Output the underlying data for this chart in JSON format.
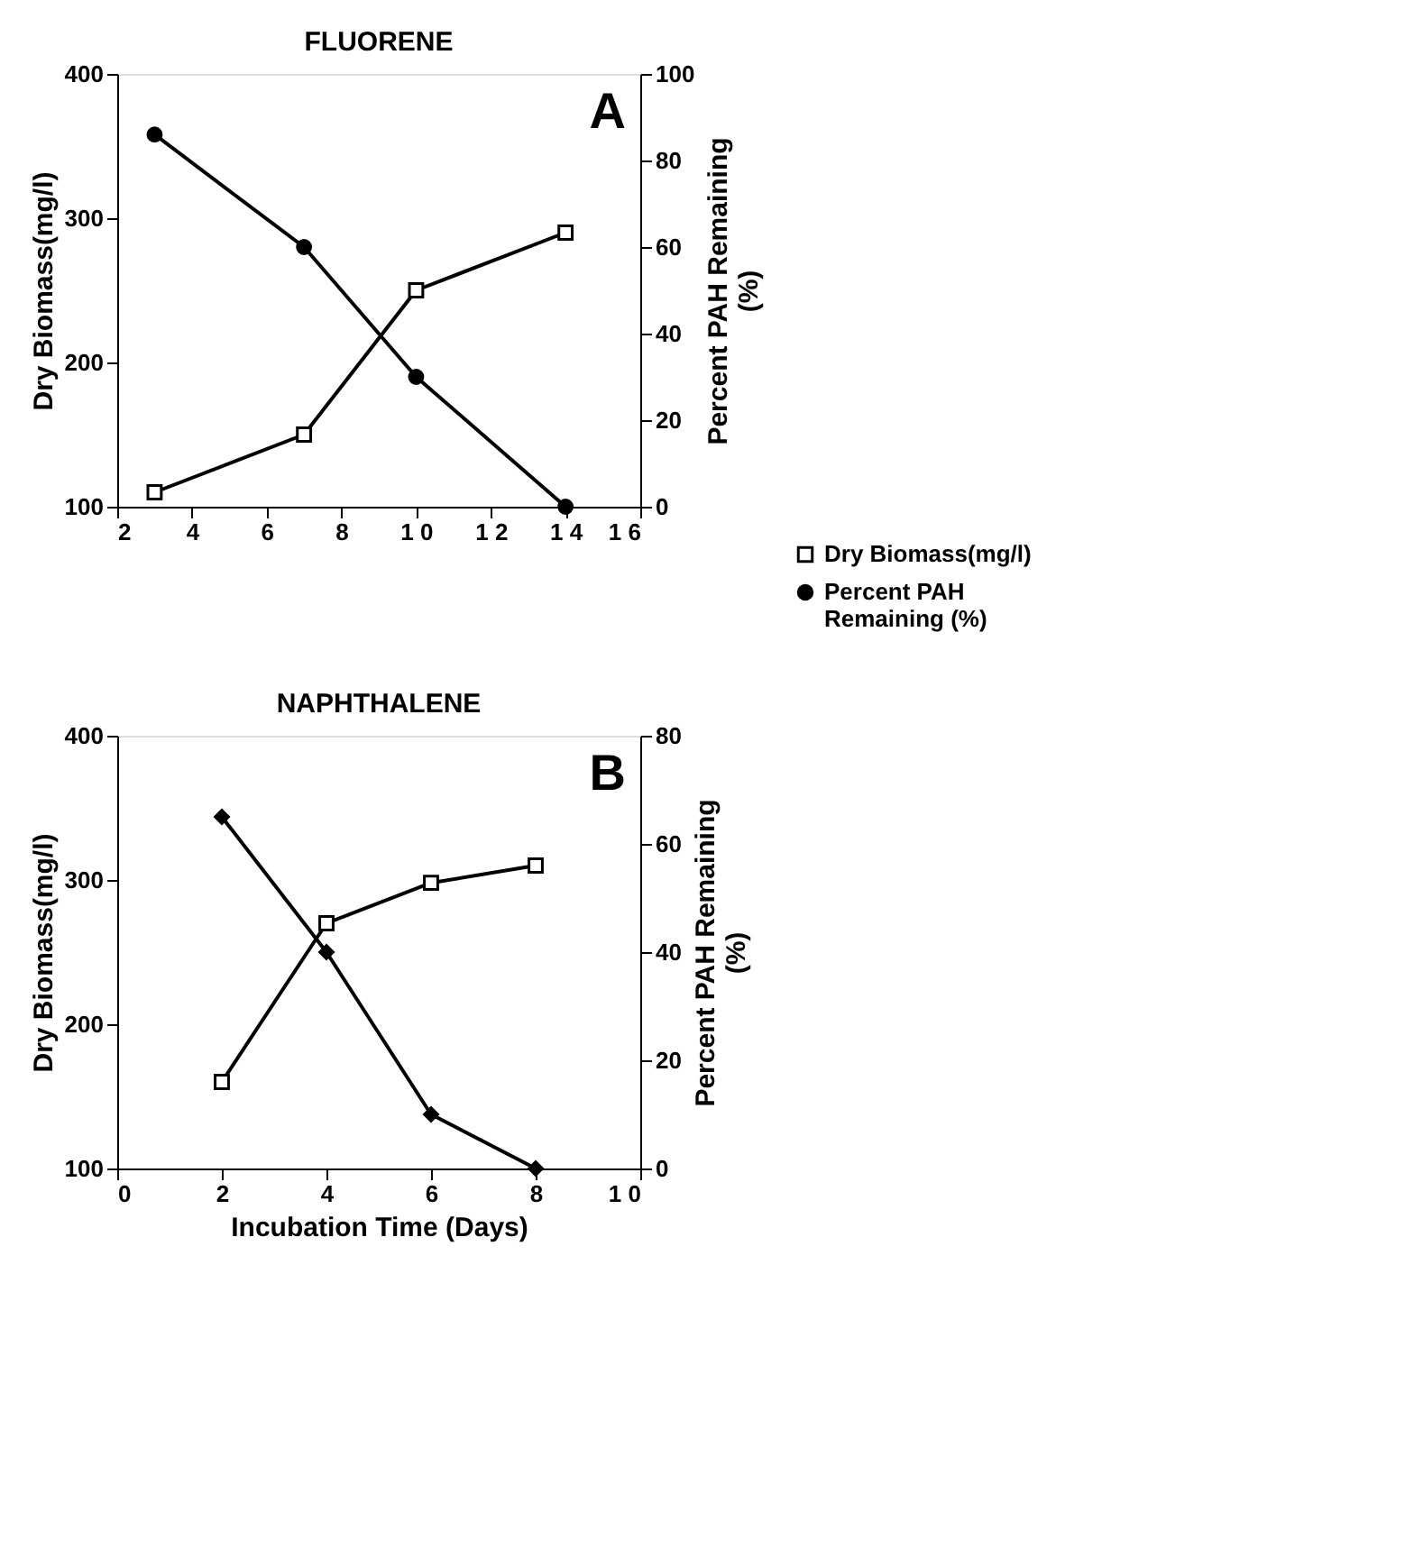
{
  "chart_data": [
    {
      "type": "line",
      "title": "FLUORENE",
      "ylabel": "Dry Biomass(mg/l)",
      "y2label": "Percent PAH Remaining\n(%)",
      "annotations": [
        "A"
      ],
      "x": [
        3,
        7,
        10,
        14
      ],
      "xlim": [
        2,
        16
      ],
      "xticks": [
        2,
        4,
        6,
        8,
        {
          "value": 10,
          "label": "1 0"
        },
        {
          "value": 12,
          "label": "1 2"
        },
        {
          "value": 14,
          "label": "1 4"
        },
        {
          "value": 16,
          "label": "1 6"
        }
      ],
      "ylim": [
        100,
        400
      ],
      "yticks": [
        100,
        200,
        300,
        400
      ],
      "y2lim": [
        0,
        100
      ],
      "y2ticks": [
        0,
        20,
        40,
        60,
        80,
        100
      ],
      "grid": false,
      "legend": "bottom right",
      "line_style": "solid",
      "series": [
        {
          "name": "Dry Biomass(mg/l)",
          "color": "#000000",
          "marker": "square",
          "values": [
            110,
            150,
            250,
            290
          ]
        },
        {
          "name": "Percent PAH\n Remaining (%)",
          "color": "#000000",
          "marker": "circle",
          "axis": "y2",
          "values": [
            86,
            60,
            30,
            0
          ]
        }
      ]
    },
    {
      "type": "line",
      "title": "NAPHTHALENE",
      "xlabel": "Incubation Time (Days)",
      "ylabel": "Dry Biomass(mg/l)",
      "y2label": "Percent PAH Remaining\n(%)",
      "annotations": [
        "B"
      ],
      "x": [
        2,
        4,
        6,
        8
      ],
      "xlim": [
        0,
        10
      ],
      "xticks": [
        0,
        2,
        4,
        6,
        8,
        {
          "value": 10,
          "label": "1 0"
        }
      ],
      "ylim": [
        100,
        400
      ],
      "yticks": [
        100,
        200,
        300,
        400
      ],
      "y2lim": [
        0,
        80
      ],
      "y2ticks": [
        0,
        20,
        40,
        60,
        80
      ],
      "grid": false,
      "line_style": "solid",
      "series": [
        {
          "color": "#000000",
          "marker": "square",
          "values": [
            160,
            270,
            298,
            310
          ]
        },
        {
          "color": "#000000",
          "marker": "diamond",
          "axis": "y2",
          "values": [
            65,
            40,
            10,
            0
          ]
        }
      ]
    }
  ]
}
